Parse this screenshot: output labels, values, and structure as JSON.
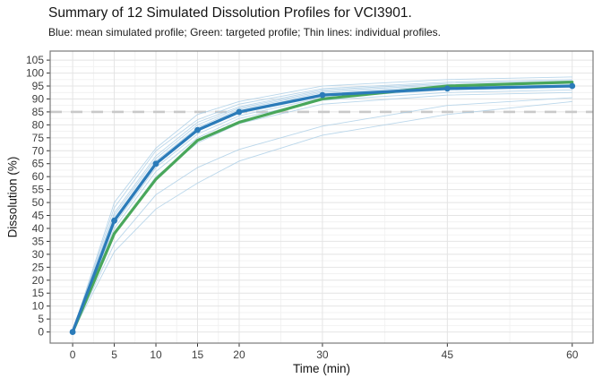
{
  "chart_data": {
    "type": "line",
    "title": "Summary of 12 Simulated Dissolution Profiles for VCI3901.",
    "subtitle": "Blue: mean simulated profile; Green: targeted profile; Thin lines: individual profiles.",
    "xlabel": "Time (min)",
    "ylabel": "Dissolution (%)",
    "x": [
      0,
      5,
      10,
      15,
      20,
      30,
      45,
      60
    ],
    "x_major_ticks": [
      0,
      5,
      10,
      15,
      20,
      30,
      45,
      60
    ],
    "y_major_ticks": [
      0,
      5,
      10,
      15,
      20,
      25,
      30,
      35,
      40,
      45,
      50,
      55,
      60,
      65,
      70,
      75,
      80,
      85,
      90,
      95,
      100,
      105
    ],
    "xlim": [
      -2.7,
      62.5
    ],
    "ylim": [
      -4.3,
      108.5
    ],
    "grid": true,
    "legend_position": "none",
    "reference_line": {
      "y": 85,
      "style": "dashed"
    },
    "mean_profile": {
      "label": "mean simulated profile",
      "values": [
        0,
        43,
        65,
        78,
        85,
        91.5,
        94,
        95
      ]
    },
    "target_profile": {
      "label": "targeted profile",
      "values": [
        0,
        38,
        59,
        74,
        81,
        90,
        95,
        96.5
      ]
    },
    "individual_profiles": {
      "label": "individual profiles",
      "count": 12,
      "series": [
        [
          0,
          50.0,
          71.0,
          84.0,
          89.0,
          95.0,
          97.5,
          98.5
        ],
        [
          0,
          48.0,
          70.0,
          82.0,
          88.0,
          94.0,
          96.5,
          97.5
        ],
        [
          0,
          46.0,
          68.0,
          81.0,
          87.0,
          93.5,
          96.0,
          97.0
        ],
        [
          0,
          45.0,
          67.0,
          80.0,
          86.5,
          93.0,
          95.5,
          96.5
        ],
        [
          0,
          44.0,
          66.0,
          79.0,
          86.0,
          92.5,
          95.0,
          96.0
        ],
        [
          0,
          43.5,
          65.5,
          78.5,
          85.5,
          92.0,
          94.5,
          95.5
        ],
        [
          0,
          42.5,
          64.5,
          77.5,
          84.5,
          91.0,
          94.0,
          95.0
        ],
        [
          0,
          41.5,
          63.5,
          76.5,
          83.5,
          90.5,
          93.5,
          94.5
        ],
        [
          0,
          40.0,
          62.0,
          75.0,
          82.5,
          89.5,
          92.5,
          93.5
        ],
        [
          0,
          38.0,
          60.0,
          73.0,
          80.5,
          88.0,
          91.5,
          92.5
        ],
        [
          0,
          34.0,
          53.0,
          63.5,
          70.5,
          79.5,
          87.5,
          90.5
        ],
        [
          0,
          31.0,
          47.5,
          57.5,
          66.0,
          76.0,
          84.0,
          89.0
        ]
      ]
    },
    "style": {
      "mean_blue": "#2b7bb9",
      "target_green": "#49a75b",
      "individual_blue": "#a9cde6",
      "reference_gray": "#c9c9c9",
      "grid_major": "#e4e4e4",
      "grid_minor": "#f1f1f1",
      "panel_border": "#7a7a7a",
      "tick_mark": "#333333",
      "tick_text": "#3d3d3d"
    }
  }
}
